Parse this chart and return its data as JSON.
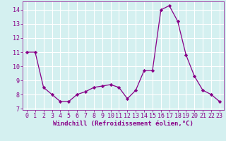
{
  "x": [
    0,
    1,
    2,
    3,
    4,
    5,
    6,
    7,
    8,
    9,
    10,
    11,
    12,
    13,
    14,
    15,
    16,
    17,
    18,
    19,
    20,
    21,
    22,
    23
  ],
  "y": [
    11.0,
    11.0,
    8.5,
    8.0,
    7.5,
    7.5,
    8.0,
    8.2,
    8.5,
    8.6,
    8.7,
    8.5,
    7.7,
    8.3,
    9.7,
    9.7,
    14.0,
    14.3,
    13.2,
    10.8,
    9.3,
    8.3,
    8.0,
    7.5
  ],
  "line_color": "#880088",
  "marker": "D",
  "markersize": 2.2,
  "linewidth": 0.9,
  "xlabel": "Windchill (Refroidissement éolien,°C)",
  "xlabel_fontsize": 6.5,
  "ylim": [
    6.9,
    14.6
  ],
  "xlim": [
    -0.5,
    23.5
  ],
  "yticks": [
    7,
    8,
    9,
    10,
    11,
    12,
    13,
    14
  ],
  "xticks": [
    0,
    1,
    2,
    3,
    4,
    5,
    6,
    7,
    8,
    9,
    10,
    11,
    12,
    13,
    14,
    15,
    16,
    17,
    18,
    19,
    20,
    21,
    22,
    23
  ],
  "bg_color": "#d4f0f0",
  "grid_color": "#ffffff",
  "tick_color": "#880088",
  "tick_fontsize": 6.0,
  "xlabel_color": "#880088"
}
